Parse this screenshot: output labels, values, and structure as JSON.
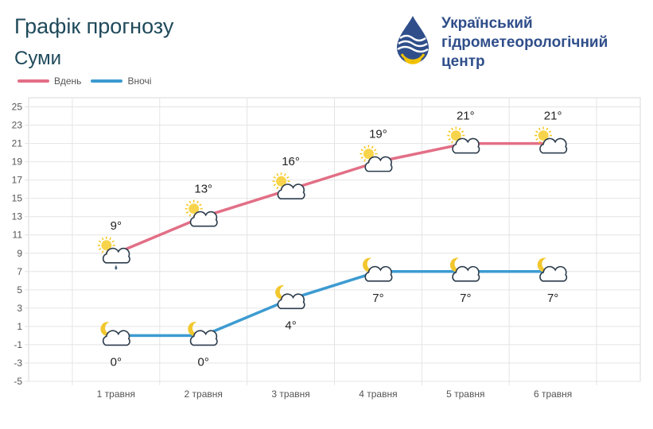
{
  "header": {
    "title": "Графік прогнозу",
    "city": "Суми"
  },
  "logo": {
    "line1": "Український",
    "line2": "гідрометеорологічний",
    "line3": "центр"
  },
  "legend": {
    "day_label": "Вдень",
    "night_label": "Вночі"
  },
  "colors": {
    "day": "#e26f86",
    "night": "#3d9bd1",
    "title": "#1f4a5a",
    "logo_text": "#2f4e8a"
  },
  "chart_data": {
    "type": "line",
    "categories": [
      "1 травня",
      "2 травня",
      "3 травня",
      "4 травня",
      "5 травня",
      "6 травня"
    ],
    "ylim": [
      -5,
      26
    ],
    "yticks": [
      -5,
      -3,
      -1,
      1,
      3,
      5,
      7,
      9,
      11,
      13,
      15,
      17,
      19,
      21,
      23,
      25
    ],
    "grid": true,
    "legend_position": "top-left",
    "series": [
      {
        "name": "Вдень",
        "values": [
          9,
          13,
          16,
          19,
          21,
          21
        ],
        "labels": [
          "9°",
          "13°",
          "16°",
          "19°",
          "21°",
          "21°"
        ],
        "icons": [
          "sun-cloud-rain-icon",
          "sun-cloud-icon",
          "sun-cloud-icon",
          "sun-cloud-icon",
          "sun-cloud-icon",
          "sun-cloud-icon"
        ]
      },
      {
        "name": "Вночі",
        "values": [
          0,
          0,
          4,
          7,
          7,
          7
        ],
        "labels": [
          "0°",
          "0°",
          "4°",
          "7°",
          "7°",
          "7°"
        ],
        "icons": [
          "moon-cloud-icon",
          "moon-cloud-icon",
          "moon-cloud-icon",
          "moon-cloud-icon",
          "moon-cloud-icon",
          "moon-cloud-icon"
        ]
      }
    ]
  }
}
